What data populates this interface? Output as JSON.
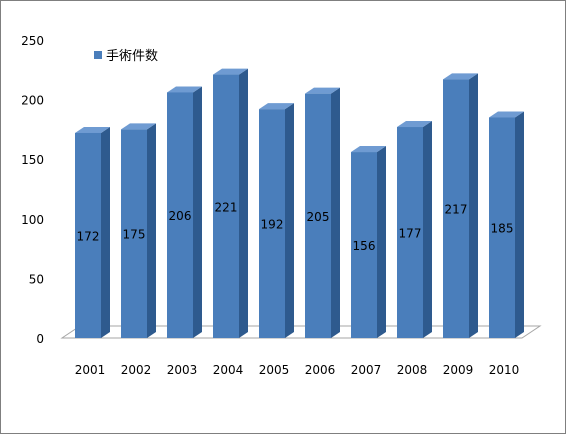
{
  "chart_data": {
    "type": "bar",
    "categories": [
      "2001",
      "2002",
      "2003",
      "2004",
      "2005",
      "2006",
      "2007",
      "2008",
      "2009",
      "2010"
    ],
    "series": [
      {
        "name": "手術件数",
        "values": [
          172,
          175,
          206,
          221,
          192,
          205,
          156,
          177,
          217,
          185
        ]
      }
    ],
    "title": "",
    "xlabel": "",
    "ylabel": "",
    "ylim": [
      0,
      250
    ],
    "yticks": [
      0,
      50,
      100,
      150,
      200,
      250
    ],
    "grid": false,
    "legend_position": "top-left",
    "style_3d": true,
    "colors": {
      "bar_front": "#4a7ebb",
      "bar_side": "#2e5a8e",
      "bar_top": "#6f9bd2",
      "floor": "#ffffff",
      "axis_line": "#a6a6a6",
      "frame": "#7f7f7f"
    }
  }
}
